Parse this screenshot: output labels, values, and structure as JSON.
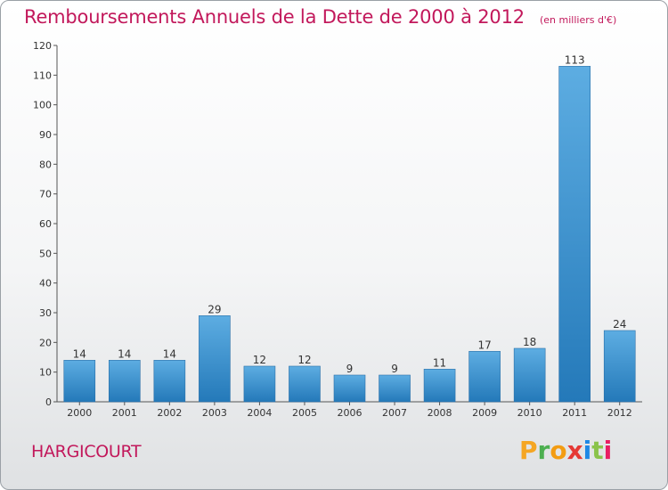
{
  "header": {
    "title": "Remboursements Annuels de la Dette de 2000 à 2012",
    "subtitle": "(en milliers d'€)"
  },
  "commune": "HARGICOURT",
  "logo": {
    "text": "Proxiti",
    "letters": [
      "P",
      "r",
      "o",
      "x",
      "i",
      "t",
      "i"
    ]
  },
  "colors": {
    "title": "#c2185b",
    "bar_light": "#5dade2",
    "bar_dark": "#2479b9"
  },
  "chart_data": {
    "type": "bar",
    "title": "Remboursements Annuels de la Dette de 2000 à 2012",
    "subtitle": "(en milliers d'€)",
    "categories": [
      "2000",
      "2001",
      "2002",
      "2003",
      "2004",
      "2005",
      "2006",
      "2007",
      "2008",
      "2009",
      "2010",
      "2011",
      "2012"
    ],
    "values": [
      14,
      14,
      14,
      29,
      12,
      12,
      9,
      9,
      11,
      17,
      18,
      113,
      24
    ],
    "ylim": [
      0,
      120
    ],
    "yticks": [
      0,
      10,
      20,
      30,
      40,
      50,
      60,
      70,
      80,
      90,
      100,
      110,
      120
    ],
    "grid": false,
    "legend": "none"
  }
}
